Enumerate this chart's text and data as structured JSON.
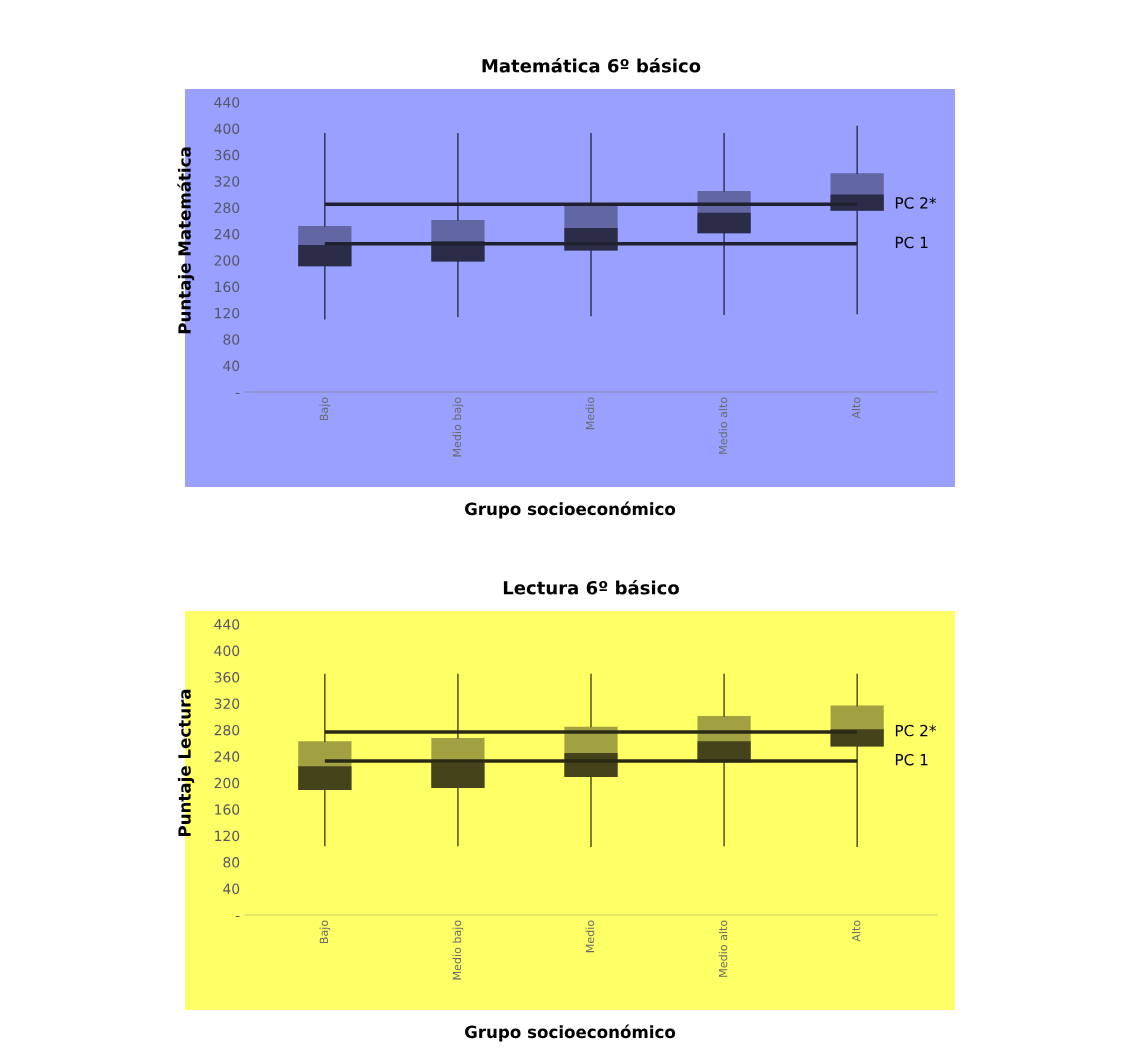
{
  "chart_data": [
    {
      "type": "box",
      "title": "Matemática 6º básico",
      "xlabel": "Grupo socioeconómico",
      "ylabel": "Puntaje Matemática",
      "categories": [
        "Bajo",
        "Medio bajo",
        "Medio",
        "Medio alto",
        "Alto"
      ],
      "series": [
        {
          "color": "#2b2d48",
          "boxes": [
            {
              "low": 111,
              "q1": 191,
              "median": 223,
              "q3": 252,
              "high": 392
            },
            {
              "low": 115,
              "q1": 198,
              "median": 229,
              "q3": 261,
              "high": 392
            },
            {
              "low": 116,
              "q1": 215,
              "median": 249,
              "q3": 284,
              "high": 392
            },
            {
              "low": 118,
              "q1": 241,
              "median": 272,
              "q3": 305,
              "high": 392
            },
            {
              "low": 119,
              "q1": 275,
              "median": 300,
              "q3": 332,
              "high": 403
            }
          ]
        }
      ],
      "ylim": [
        0,
        460
      ],
      "yticks": [
        {
          "value": 0,
          "label": "-"
        },
        40,
        80,
        120,
        160,
        200,
        240,
        280,
        320,
        360,
        400,
        440
      ],
      "ref_lines": [
        {
          "axis": "y",
          "value": 285,
          "label": "PC 2*",
          "color": "#1f2030"
        },
        {
          "axis": "y",
          "value": 225,
          "label": "PC 1",
          "color": "#1f2030"
        }
      ]
    },
    {
      "type": "box",
      "title": "Lectura 6º básico",
      "xlabel": "Grupo socioeconómico",
      "ylabel": "Puntaje Lectura",
      "categories": [
        "Bajo",
        "Medio bajo",
        "Medio",
        "Medio alto",
        "Alto"
      ],
      "series": [
        {
          "color": "#45431c",
          "boxes": [
            {
              "low": 105,
              "q1": 189,
              "median": 225,
              "q3": 263,
              "high": 364
            },
            {
              "low": 105,
              "q1": 192,
              "median": 231,
              "q3": 268,
              "high": 364
            },
            {
              "low": 104,
              "q1": 209,
              "median": 245,
              "q3": 285,
              "high": 364
            },
            {
              "low": 105,
              "q1": 231,
              "median": 263,
              "q3": 301,
              "high": 364
            },
            {
              "low": 104,
              "q1": 255,
              "median": 281,
              "q3": 317,
              "high": 364
            }
          ]
        }
      ],
      "ylim": [
        0,
        460
      ],
      "yticks": [
        {
          "value": 0,
          "label": "-"
        },
        40,
        80,
        120,
        160,
        200,
        240,
        280,
        320,
        360,
        400,
        440
      ],
      "ref_lines": [
        {
          "axis": "y",
          "value": 277,
          "label": "PC 2*",
          "color": "#2a2a14"
        },
        {
          "axis": "y",
          "value": 233,
          "label": "PC 1",
          "color": "#2a2a14"
        }
      ]
    }
  ]
}
